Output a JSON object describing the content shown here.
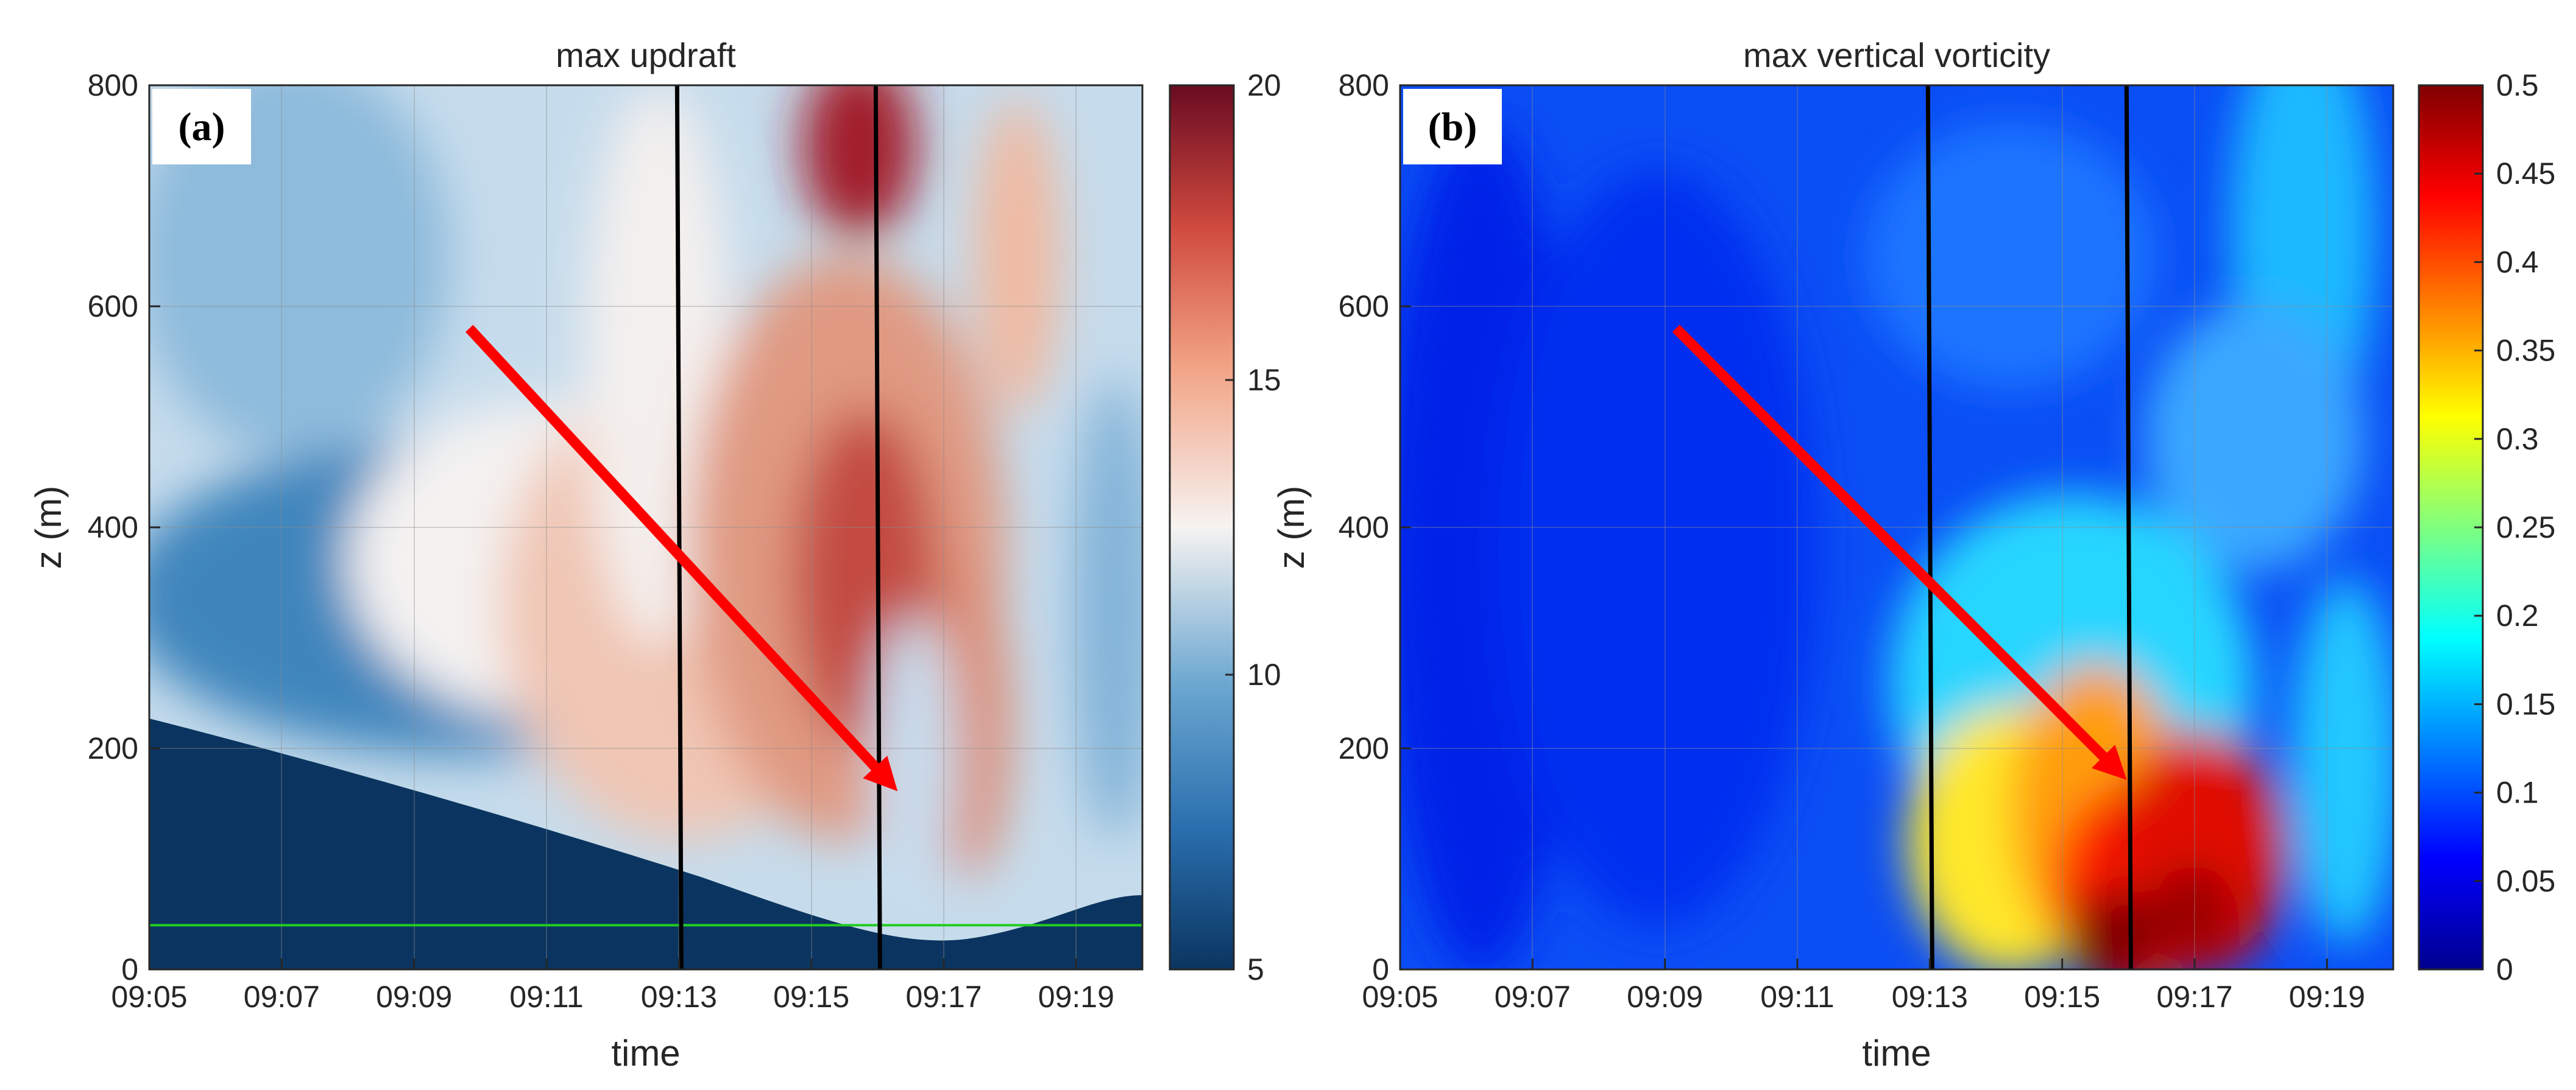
{
  "chart_data": [
    {
      "id": "a",
      "type": "heatmap",
      "panel_label": "(a)",
      "title": "max updraft",
      "xlabel": "time",
      "ylabel": "z (m)",
      "x_ticks": [
        "09:05",
        "09:07",
        "09:09",
        "09:11",
        "09:13",
        "09:15",
        "09:17",
        "09:19"
      ],
      "x_range_minutes": [
        0,
        15
      ],
      "y_ticks": [
        0,
        200,
        400,
        600,
        800
      ],
      "ylim": [
        0,
        800
      ],
      "colorbar": {
        "ticks": [
          5,
          10,
          15,
          20
        ],
        "range": [
          5,
          20
        ],
        "colormap": "blue-white-red"
      },
      "vertical_lines_time": [
        "09:13",
        "09:16"
      ],
      "horizontal_line_z": 40,
      "arrow": {
        "from": {
          "time": "09:09:50",
          "z": 580
        },
        "to": {
          "time": "09:16:10",
          "z": 170
        }
      },
      "colors": {
        "arrow": "#ff0000",
        "hline": "#22cc22",
        "vlines": "#000000"
      }
    },
    {
      "id": "b",
      "type": "heatmap",
      "panel_label": "(b)",
      "title": "max vertical vorticity",
      "xlabel": "time",
      "ylabel": "z (m)",
      "x_ticks": [
        "09:05",
        "09:07",
        "09:09",
        "09:11",
        "09:13",
        "09:15",
        "09:17",
        "09:19"
      ],
      "x_range_minutes": [
        0,
        15
      ],
      "y_ticks": [
        0,
        200,
        400,
        600,
        800
      ],
      "ylim": [
        0,
        800
      ],
      "colorbar": {
        "ticks": [
          0,
          0.05,
          0.1,
          0.15,
          0.2,
          0.25,
          0.3,
          0.35,
          0.4,
          0.45,
          0.5
        ],
        "range": [
          0,
          0.5
        ],
        "colormap": "jet"
      },
      "vertical_lines_time": [
        "09:13",
        "09:16"
      ],
      "arrow": {
        "from": {
          "time": "09:09:10",
          "z": 580
        },
        "to": {
          "time": "09:15:50",
          "z": 180
        }
      },
      "colors": {
        "arrow": "#ff0000",
        "vlines": "#000000"
      }
    }
  ]
}
